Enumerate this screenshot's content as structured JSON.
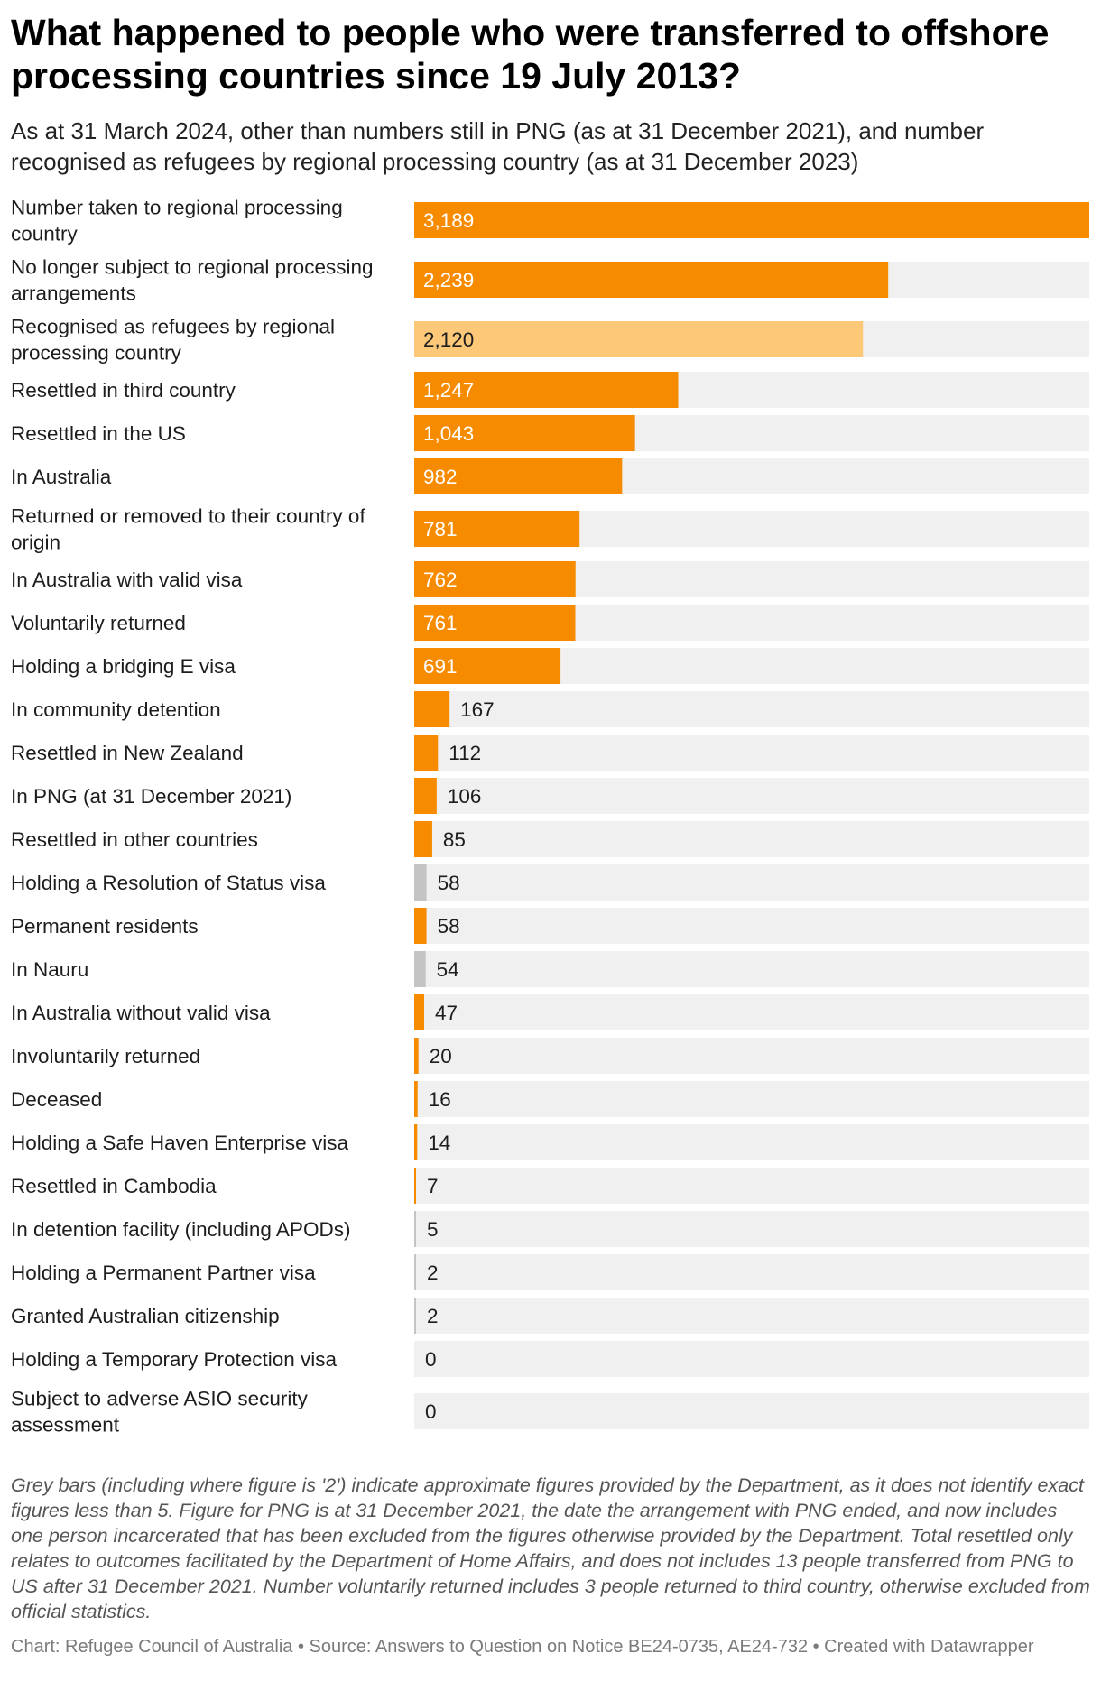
{
  "title": "What happened to people who were transferred to offshore processing countries since 19 July 2013?",
  "subtitle": "As at 31 March 2024, other than numbers still in PNG (as at 31 December 2021), and number recognised as refugees by regional processing country (as at 31 December 2023)",
  "colors": {
    "orange": "#f78b00",
    "light_orange": "#fdc878",
    "grey": "#c4c4c4",
    "track": "#f0f0f0",
    "label_in_bar": "#ffffff",
    "label_outside": "#1d1d1d"
  },
  "chart_data": {
    "type": "bar",
    "orientation": "horizontal",
    "xlim": [
      0,
      3189
    ],
    "bars": [
      {
        "label": "Number taken to regional processing country",
        "value": 3189,
        "display": "3,189",
        "style": "orange"
      },
      {
        "label": "No longer subject to regional processing arrangements",
        "value": 2239,
        "display": "2,239",
        "style": "orange"
      },
      {
        "label": "Recognised as refugees by regional processing country",
        "value": 2120,
        "display": "2,120",
        "style": "light_orange"
      },
      {
        "label": "Resettled in third country",
        "value": 1247,
        "display": "1,247",
        "style": "orange"
      },
      {
        "label": "Resettled in the US",
        "value": 1043,
        "display": "1,043",
        "style": "orange"
      },
      {
        "label": "In Australia",
        "value": 982,
        "display": "982",
        "style": "orange"
      },
      {
        "label": "Returned or removed to their country of origin",
        "value": 781,
        "display": "781",
        "style": "orange"
      },
      {
        "label": "In Australia with valid visa",
        "value": 762,
        "display": "762",
        "style": "orange"
      },
      {
        "label": "Voluntarily returned",
        "value": 761,
        "display": "761",
        "style": "orange"
      },
      {
        "label": "Holding a bridging E visa",
        "value": 691,
        "display": "691",
        "style": "orange"
      },
      {
        "label": "In community detention",
        "value": 167,
        "display": "167",
        "style": "orange"
      },
      {
        "label": "Resettled in New Zealand",
        "value": 112,
        "display": "112",
        "style": "orange"
      },
      {
        "label": "In PNG (at 31 December 2021)",
        "value": 106,
        "display": "106",
        "style": "orange"
      },
      {
        "label": "Resettled in other countries",
        "value": 85,
        "display": "85",
        "style": "orange"
      },
      {
        "label": "Holding a Resolution of Status visa",
        "value": 58,
        "display": "58",
        "style": "grey"
      },
      {
        "label": "Permanent residents",
        "value": 58,
        "display": "58",
        "style": "orange"
      },
      {
        "label": "In Nauru",
        "value": 54,
        "display": "54",
        "style": "grey"
      },
      {
        "label": "In Australia without valid visa",
        "value": 47,
        "display": "47",
        "style": "orange"
      },
      {
        "label": "Involuntarily returned",
        "value": 20,
        "display": "20",
        "style": "orange"
      },
      {
        "label": "Deceased",
        "value": 16,
        "display": "16",
        "style": "orange"
      },
      {
        "label": "Holding a Safe Haven Enterprise visa",
        "value": 14,
        "display": "14",
        "style": "orange"
      },
      {
        "label": "Resettled in Cambodia",
        "value": 7,
        "display": "7",
        "style": "orange"
      },
      {
        "label": "In detention facility (including APODs)",
        "value": 5,
        "display": "5",
        "style": "grey"
      },
      {
        "label": "Holding a Permanent Partner visa",
        "value": 2,
        "display": "2",
        "style": "grey"
      },
      {
        "label": "Granted Australian citizenship",
        "value": 2,
        "display": "2",
        "style": "grey"
      },
      {
        "label": "Holding a Temporary Protection visa",
        "value": 0,
        "display": "0",
        "style": "grey"
      },
      {
        "label": "Subject to adverse ASIO security assessment",
        "value": 0,
        "display": "0",
        "style": "grey"
      }
    ]
  },
  "notes": "Grey bars (including where figure is '2') indicate approximate figures provided by the Department, as it does not identify exact figures less than 5. Figure for PNG is at 31 December 2021, the date the arrangement with PNG ended, and now includes one person incarcerated that has been excluded from the figures otherwise provided by the Department. Total resettled only relates to outcomes facilitated by the Department of Home Affairs, and does not includes 13 people transferred from PNG to US after 31 December 2021. Number voluntarily returned includes 3 people returned to third country, otherwise excluded from official statistics.",
  "credit": "Chart: Refugee Council of Australia • Source: Answers to Question on Notice BE24-0735, AE24-732 • Created with Datawrapper"
}
